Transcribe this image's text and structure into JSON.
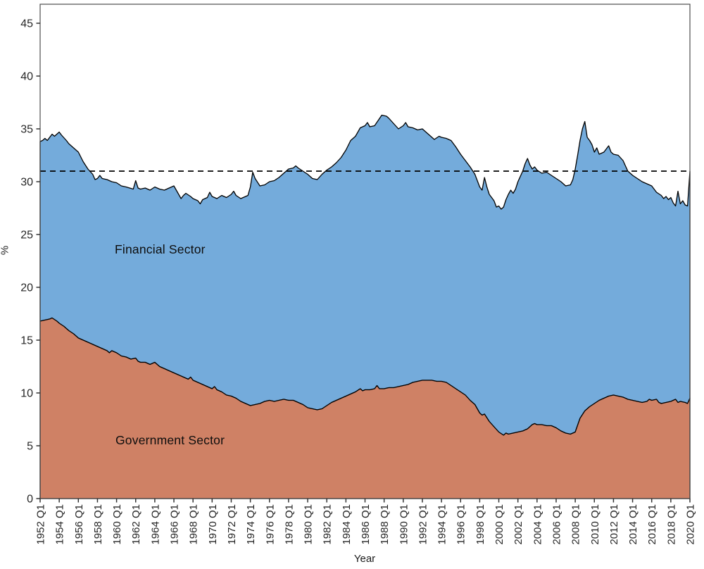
{
  "chart_data": {
    "type": "area",
    "stacked": true,
    "title": "",
    "xlabel": "Year",
    "ylabel": "%",
    "xlim_years": [
      1952,
      2020
    ],
    "ylim": [
      0,
      46.8
    ],
    "grid": "off",
    "legend": "labels drawn inside areas",
    "colors": {
      "financial_fill": "#74ABDB",
      "government_fill": "#CF8165",
      "outline": "#000000",
      "panel_border": "#4d4d4d",
      "tick_text": "#262626",
      "reference_line": "#000000"
    },
    "y_ticks": [
      0,
      5,
      10,
      15,
      20,
      25,
      30,
      35,
      40,
      45
    ],
    "x_ticks": [
      "1952 Q1",
      "1954 Q1",
      "1956 Q1",
      "1958 Q1",
      "1960 Q1",
      "1962 Q1",
      "1964 Q1",
      "1966 Q1",
      "1968 Q1",
      "1970 Q1",
      "1972 Q1",
      "1974 Q1",
      "1976 Q1",
      "1978 Q1",
      "1980 Q1",
      "1982 Q1",
      "1984 Q1",
      "1986 Q1",
      "1988 Q1",
      "1990 Q1",
      "1992 Q1",
      "1994 Q1",
      "1996 Q1",
      "1998 Q1",
      "2000 Q1",
      "2002 Q1",
      "2004 Q1",
      "2006 Q1",
      "2008 Q1",
      "2010 Q1",
      "2012 Q1",
      "2014 Q1",
      "2016 Q1",
      "2018 Q1",
      "2020 Q1"
    ],
    "x_tick_years": [
      1952,
      1954,
      1956,
      1958,
      1960,
      1962,
      1964,
      1966,
      1968,
      1970,
      1972,
      1974,
      1976,
      1978,
      1980,
      1982,
      1984,
      1986,
      1988,
      1990,
      1992,
      1994,
      1996,
      1998,
      2000,
      2002,
      2004,
      2006,
      2008,
      2010,
      2012,
      2014,
      2016,
      2018,
      2020
    ],
    "reference_line": {
      "value": 31,
      "style": "dashed"
    },
    "series_labels": {
      "financial": "Financial Sector",
      "government": "Government Sector"
    },
    "series_meta": [
      {
        "key": "government",
        "name": "Government Sector",
        "fill": "#CF8165"
      },
      {
        "key": "financial",
        "name": "Financial Sector",
        "fill": "#74ABDB",
        "reading_note": "Financial Sector is stacked on top of Government Sector; combined_top_edge = Government + Financial (%)"
      }
    ],
    "government_top_edge": [
      [
        1952,
        16.8
      ],
      [
        1952.5,
        16.9
      ],
      [
        1953,
        17.0
      ],
      [
        1953.25,
        17.1
      ],
      [
        1953.75,
        16.8
      ],
      [
        1954,
        16.6
      ],
      [
        1954.5,
        16.3
      ],
      [
        1955,
        15.9
      ],
      [
        1955.5,
        15.6
      ],
      [
        1956,
        15.2
      ],
      [
        1956.5,
        15.0
      ],
      [
        1957,
        14.8
      ],
      [
        1957.5,
        14.6
      ],
      [
        1958,
        14.4
      ],
      [
        1958.5,
        14.2
      ],
      [
        1959,
        14.0
      ],
      [
        1959.25,
        13.8
      ],
      [
        1959.5,
        14.0
      ],
      [
        1960,
        13.8
      ],
      [
        1960.5,
        13.5
      ],
      [
        1961,
        13.4
      ],
      [
        1961.5,
        13.2
      ],
      [
        1962,
        13.3
      ],
      [
        1962.25,
        13.0
      ],
      [
        1962.5,
        12.9
      ],
      [
        1963,
        12.9
      ],
      [
        1963.5,
        12.7
      ],
      [
        1964,
        12.9
      ],
      [
        1964.5,
        12.5
      ],
      [
        1965,
        12.3
      ],
      [
        1965.5,
        12.1
      ],
      [
        1966,
        11.9
      ],
      [
        1966.5,
        11.7
      ],
      [
        1967,
        11.5
      ],
      [
        1967.5,
        11.3
      ],
      [
        1967.75,
        11.5
      ],
      [
        1968,
        11.2
      ],
      [
        1968.5,
        11.0
      ],
      [
        1969,
        10.8
      ],
      [
        1969.5,
        10.6
      ],
      [
        1970,
        10.4
      ],
      [
        1970.25,
        10.6
      ],
      [
        1970.5,
        10.3
      ],
      [
        1971,
        10.1
      ],
      [
        1971.5,
        9.8
      ],
      [
        1972,
        9.7
      ],
      [
        1972.5,
        9.5
      ],
      [
        1973,
        9.2
      ],
      [
        1973.5,
        9.0
      ],
      [
        1974,
        8.8
      ],
      [
        1974.5,
        8.9
      ],
      [
        1975,
        9.0
      ],
      [
        1975.5,
        9.2
      ],
      [
        1976,
        9.3
      ],
      [
        1976.5,
        9.2
      ],
      [
        1977,
        9.3
      ],
      [
        1977.5,
        9.4
      ],
      [
        1978,
        9.3
      ],
      [
        1978.5,
        9.3
      ],
      [
        1979,
        9.1
      ],
      [
        1979.5,
        8.9
      ],
      [
        1980,
        8.6
      ],
      [
        1980.5,
        8.5
      ],
      [
        1981,
        8.4
      ],
      [
        1981.5,
        8.5
      ],
      [
        1982,
        8.8
      ],
      [
        1982.5,
        9.1
      ],
      [
        1983,
        9.3
      ],
      [
        1983.5,
        9.5
      ],
      [
        1984,
        9.7
      ],
      [
        1984.5,
        9.9
      ],
      [
        1985,
        10.1
      ],
      [
        1985.5,
        10.4
      ],
      [
        1985.75,
        10.2
      ],
      [
        1986,
        10.3
      ],
      [
        1986.5,
        10.3
      ],
      [
        1987,
        10.4
      ],
      [
        1987.25,
        10.7
      ],
      [
        1987.5,
        10.4
      ],
      [
        1988,
        10.4
      ],
      [
        1988.5,
        10.5
      ],
      [
        1989,
        10.5
      ],
      [
        1989.5,
        10.6
      ],
      [
        1990,
        10.7
      ],
      [
        1990.5,
        10.8
      ],
      [
        1991,
        11.0
      ],
      [
        1991.5,
        11.1
      ],
      [
        1992,
        11.2
      ],
      [
        1992.5,
        11.2
      ],
      [
        1993,
        11.2
      ],
      [
        1993.5,
        11.1
      ],
      [
        1994,
        11.1
      ],
      [
        1994.5,
        11.0
      ],
      [
        1995,
        10.7
      ],
      [
        1995.5,
        10.4
      ],
      [
        1996,
        10.1
      ],
      [
        1996.5,
        9.8
      ],
      [
        1997,
        9.3
      ],
      [
        1997.5,
        8.9
      ],
      [
        1998,
        8.1
      ],
      [
        1998.25,
        7.9
      ],
      [
        1998.5,
        8.0
      ],
      [
        1999,
        7.3
      ],
      [
        1999.5,
        6.8
      ],
      [
        2000,
        6.3
      ],
      [
        2000.5,
        6.0
      ],
      [
        2000.75,
        6.2
      ],
      [
        2001,
        6.1
      ],
      [
        2001.5,
        6.2
      ],
      [
        2002,
        6.3
      ],
      [
        2002.5,
        6.4
      ],
      [
        2003,
        6.6
      ],
      [
        2003.5,
        7.0
      ],
      [
        2003.75,
        7.1
      ],
      [
        2004,
        7.0
      ],
      [
        2004.5,
        7.0
      ],
      [
        2005,
        6.9
      ],
      [
        2005.5,
        6.9
      ],
      [
        2006,
        6.7
      ],
      [
        2006.5,
        6.4
      ],
      [
        2007,
        6.2
      ],
      [
        2007.5,
        6.1
      ],
      [
        2008,
        6.3
      ],
      [
        2008.5,
        7.6
      ],
      [
        2009,
        8.3
      ],
      [
        2009.5,
        8.7
      ],
      [
        2010,
        9.0
      ],
      [
        2010.5,
        9.3
      ],
      [
        2011,
        9.5
      ],
      [
        2011.5,
        9.7
      ],
      [
        2012,
        9.8
      ],
      [
        2012.5,
        9.7
      ],
      [
        2013,
        9.6
      ],
      [
        2013.5,
        9.4
      ],
      [
        2014,
        9.3
      ],
      [
        2014.5,
        9.2
      ],
      [
        2015,
        9.1
      ],
      [
        2015.5,
        9.2
      ],
      [
        2015.75,
        9.4
      ],
      [
        2016,
        9.3
      ],
      [
        2016.5,
        9.4
      ],
      [
        2016.75,
        9.1
      ],
      [
        2017,
        9.0
      ],
      [
        2017.5,
        9.1
      ],
      [
        2018,
        9.2
      ],
      [
        2018.5,
        9.4
      ],
      [
        2018.75,
        9.1
      ],
      [
        2019,
        9.2
      ],
      [
        2019.5,
        9.1
      ],
      [
        2019.75,
        9.0
      ],
      [
        2020,
        9.5
      ]
    ],
    "combined_top_edge": [
      [
        1952,
        33.8
      ],
      [
        1952.25,
        33.9
      ],
      [
        1952.5,
        34.1
      ],
      [
        1952.75,
        33.9
      ],
      [
        1953,
        34.2
      ],
      [
        1953.25,
        34.5
      ],
      [
        1953.5,
        34.3
      ],
      [
        1954,
        34.7
      ],
      [
        1954.25,
        34.4
      ],
      [
        1954.75,
        33.9
      ],
      [
        1955,
        33.6
      ],
      [
        1955.5,
        33.2
      ],
      [
        1956,
        32.8
      ],
      [
        1956.5,
        31.9
      ],
      [
        1957,
        31.2
      ],
      [
        1957.5,
        30.7
      ],
      [
        1957.75,
        30.2
      ],
      [
        1958,
        30.3
      ],
      [
        1958.25,
        30.6
      ],
      [
        1958.5,
        30.3
      ],
      [
        1959,
        30.2
      ],
      [
        1959.5,
        30.0
      ],
      [
        1960,
        29.9
      ],
      [
        1960.5,
        29.6
      ],
      [
        1961,
        29.5
      ],
      [
        1961.75,
        29.3
      ],
      [
        1962,
        30.1
      ],
      [
        1962.25,
        29.4
      ],
      [
        1962.5,
        29.3
      ],
      [
        1963,
        29.4
      ],
      [
        1963.5,
        29.2
      ],
      [
        1964,
        29.5
      ],
      [
        1964.5,
        29.3
      ],
      [
        1965,
        29.2
      ],
      [
        1965.5,
        29.4
      ],
      [
        1966,
        29.6
      ],
      [
        1966.5,
        28.8
      ],
      [
        1966.75,
        28.4
      ],
      [
        1967,
        28.7
      ],
      [
        1967.25,
        28.9
      ],
      [
        1967.75,
        28.6
      ],
      [
        1968,
        28.4
      ],
      [
        1968.5,
        28.2
      ],
      [
        1968.75,
        27.9
      ],
      [
        1969,
        28.3
      ],
      [
        1969.5,
        28.5
      ],
      [
        1969.75,
        29.0
      ],
      [
        1970,
        28.6
      ],
      [
        1970.5,
        28.4
      ],
      [
        1971,
        28.7
      ],
      [
        1971.5,
        28.5
      ],
      [
        1972,
        28.8
      ],
      [
        1972.25,
        29.1
      ],
      [
        1972.5,
        28.7
      ],
      [
        1973,
        28.4
      ],
      [
        1973.25,
        28.5
      ],
      [
        1973.75,
        28.7
      ],
      [
        1974,
        29.5
      ],
      [
        1974.25,
        30.9
      ],
      [
        1974.5,
        30.3
      ],
      [
        1975,
        29.6
      ],
      [
        1975.5,
        29.7
      ],
      [
        1976,
        30.0
      ],
      [
        1976.5,
        30.1
      ],
      [
        1977,
        30.4
      ],
      [
        1977.5,
        30.8
      ],
      [
        1978,
        31.2
      ],
      [
        1978.5,
        31.3
      ],
      [
        1978.75,
        31.5
      ],
      [
        1979,
        31.3
      ],
      [
        1979.5,
        31.0
      ],
      [
        1980,
        30.7
      ],
      [
        1980.5,
        30.3
      ],
      [
        1981,
        30.2
      ],
      [
        1981.5,
        30.7
      ],
      [
        1982,
        31.1
      ],
      [
        1982.5,
        31.4
      ],
      [
        1983,
        31.8
      ],
      [
        1983.5,
        32.3
      ],
      [
        1984,
        33.0
      ],
      [
        1984.5,
        33.9
      ],
      [
        1985,
        34.3
      ],
      [
        1985.5,
        35.1
      ],
      [
        1986,
        35.3
      ],
      [
        1986.25,
        35.6
      ],
      [
        1986.5,
        35.2
      ],
      [
        1987,
        35.3
      ],
      [
        1987.75,
        36.3
      ],
      [
        1988.25,
        36.2
      ],
      [
        1988.5,
        36.0
      ],
      [
        1989,
        35.5
      ],
      [
        1989.5,
        35.0
      ],
      [
        1990,
        35.3
      ],
      [
        1990.25,
        35.6
      ],
      [
        1990.5,
        35.2
      ],
      [
        1991,
        35.1
      ],
      [
        1991.5,
        34.9
      ],
      [
        1992,
        35.0
      ],
      [
        1992.5,
        34.6
      ],
      [
        1993,
        34.2
      ],
      [
        1993.25,
        34.0
      ],
      [
        1993.75,
        34.3
      ],
      [
        1994,
        34.2
      ],
      [
        1994.5,
        34.1
      ],
      [
        1995,
        33.9
      ],
      [
        1995.5,
        33.3
      ],
      [
        1996,
        32.6
      ],
      [
        1996.5,
        32.0
      ],
      [
        1997,
        31.4
      ],
      [
        1997.5,
        30.7
      ],
      [
        1998,
        29.5
      ],
      [
        1998.25,
        29.2
      ],
      [
        1998.5,
        30.4
      ],
      [
        1998.75,
        29.5
      ],
      [
        1999,
        28.8
      ],
      [
        1999.5,
        28.2
      ],
      [
        1999.75,
        27.6
      ],
      [
        2000,
        27.7
      ],
      [
        2000.25,
        27.4
      ],
      [
        2000.5,
        27.6
      ],
      [
        2000.75,
        28.3
      ],
      [
        2001,
        28.8
      ],
      [
        2001.25,
        29.2
      ],
      [
        2001.5,
        28.9
      ],
      [
        2001.75,
        29.3
      ],
      [
        2002,
        30.0
      ],
      [
        2002.5,
        31.0
      ],
      [
        2002.75,
        31.7
      ],
      [
        2003,
        32.2
      ],
      [
        2003.25,
        31.6
      ],
      [
        2003.5,
        31.2
      ],
      [
        2003.75,
        31.4
      ],
      [
        2004,
        31.1
      ],
      [
        2004.5,
        30.8
      ],
      [
        2005,
        30.9
      ],
      [
        2005.5,
        30.6
      ],
      [
        2006,
        30.3
      ],
      [
        2006.5,
        30.0
      ],
      [
        2007,
        29.6
      ],
      [
        2007.5,
        29.7
      ],
      [
        2007.75,
        30.2
      ],
      [
        2008,
        31.2
      ],
      [
        2008.25,
        32.5
      ],
      [
        2008.5,
        33.9
      ],
      [
        2008.75,
        35.0
      ],
      [
        2009,
        35.7
      ],
      [
        2009.25,
        34.2
      ],
      [
        2009.5,
        33.9
      ],
      [
        2009.75,
        33.5
      ],
      [
        2010,
        32.8
      ],
      [
        2010.25,
        33.2
      ],
      [
        2010.5,
        32.6
      ],
      [
        2011,
        32.8
      ],
      [
        2011.5,
        33.4
      ],
      [
        2011.75,
        32.8
      ],
      [
        2012,
        32.6
      ],
      [
        2012.5,
        32.5
      ],
      [
        2013,
        32.0
      ],
      [
        2013.5,
        31.0
      ],
      [
        2014,
        30.6
      ],
      [
        2014.5,
        30.3
      ],
      [
        2015,
        30.0
      ],
      [
        2015.5,
        29.8
      ],
      [
        2016,
        29.6
      ],
      [
        2016.5,
        29.0
      ],
      [
        2017,
        28.7
      ],
      [
        2017.25,
        28.4
      ],
      [
        2017.5,
        28.6
      ],
      [
        2017.75,
        28.3
      ],
      [
        2018,
        28.5
      ],
      [
        2018.25,
        28.0
      ],
      [
        2018.5,
        27.7
      ],
      [
        2018.75,
        29.1
      ],
      [
        2019,
        27.9
      ],
      [
        2019.25,
        28.2
      ],
      [
        2019.5,
        27.8
      ],
      [
        2019.75,
        27.7
      ],
      [
        2020,
        31.0
      ]
    ]
  }
}
